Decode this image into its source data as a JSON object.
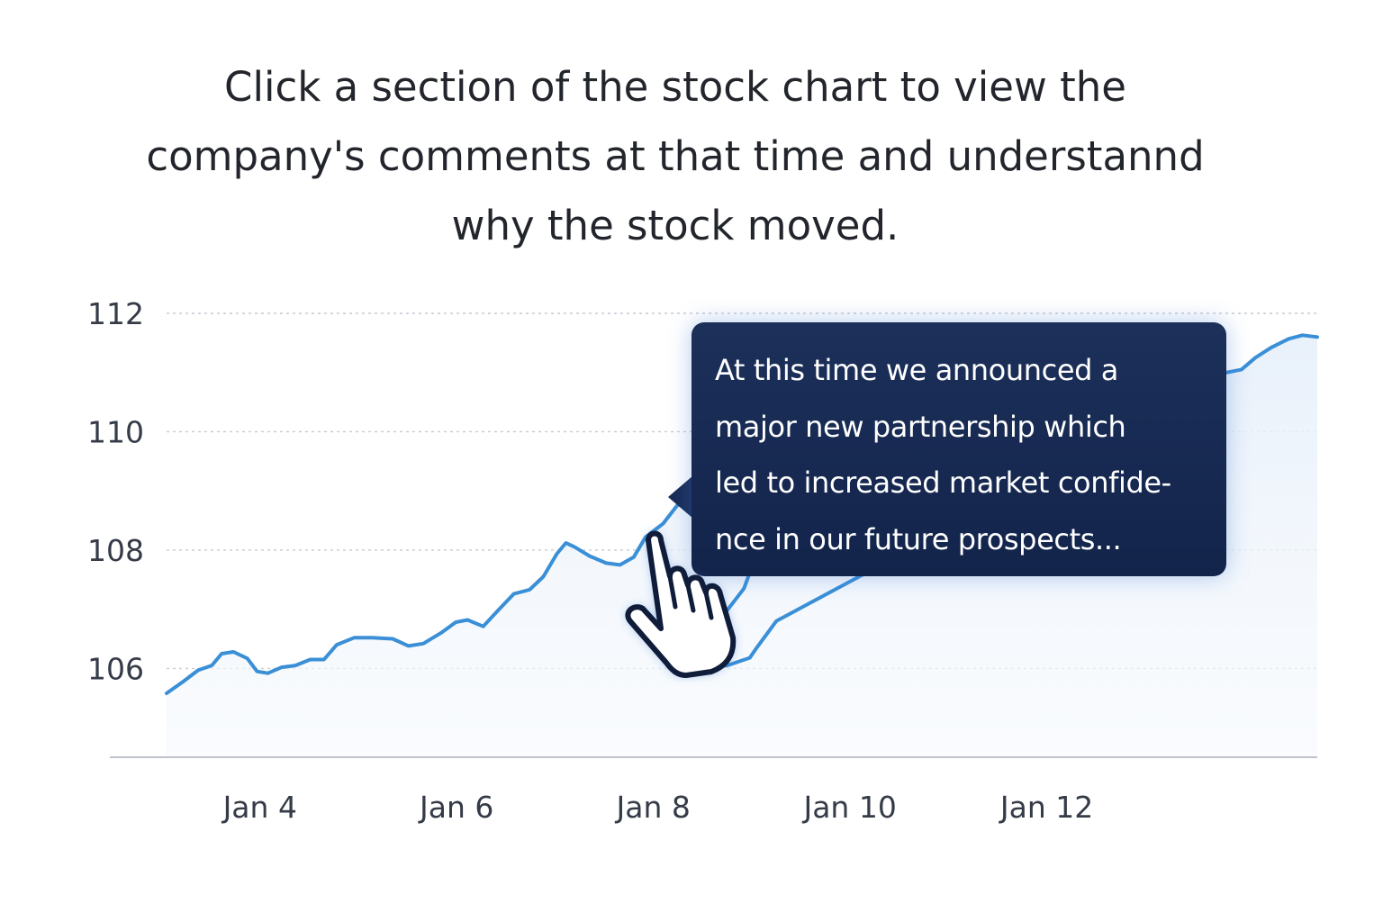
{
  "instruction": "Click a section of the stock chart to view the company's comments at that time and understannd why the stock moved.",
  "tooltip": {
    "text": "At this time we announced a\nmajor new partnership which\nled to increased market confide-\nnce in our future prospects..."
  },
  "cursor": {
    "icon": "hand-pointer-icon"
  },
  "colors": {
    "line": "#3a8fd6",
    "tooltip_bg": "#162a55",
    "text": "#22252b"
  },
  "chart_data": {
    "type": "line",
    "title": "",
    "xlabel": "",
    "ylabel": "",
    "y_ticks": [
      "106",
      "108",
      "110",
      "112"
    ],
    "x_ticks": [
      "Jan 4",
      "Jan 6",
      "Jan 8",
      "Jan 10",
      "Jan 12"
    ],
    "x_tick_values": [
      4,
      6,
      8,
      10,
      12
    ],
    "xlim": [
      3.05,
      14.75
    ],
    "ylim": [
      104.5,
      112.0
    ],
    "grid": true,
    "series": [
      {
        "name": "",
        "points": [
          [
            3.05,
            105.58
          ],
          [
            3.22,
            105.78
          ],
          [
            3.37,
            105.97
          ],
          [
            3.51,
            106.05
          ],
          [
            3.61,
            106.25
          ],
          [
            3.73,
            106.28
          ],
          [
            3.87,
            106.17
          ],
          [
            3.97,
            105.95
          ],
          [
            4.08,
            105.92
          ],
          [
            4.22,
            106.02
          ],
          [
            4.36,
            106.05
          ],
          [
            4.51,
            106.15
          ],
          [
            4.65,
            106.15
          ],
          [
            4.78,
            106.4
          ],
          [
            4.96,
            106.52
          ],
          [
            5.14,
            106.52
          ],
          [
            5.35,
            106.5
          ],
          [
            5.51,
            106.38
          ],
          [
            5.66,
            106.42
          ],
          [
            5.85,
            106.61
          ],
          [
            5.99,
            106.78
          ],
          [
            6.11,
            106.82
          ],
          [
            6.27,
            106.71
          ],
          [
            6.42,
            106.98
          ],
          [
            6.58,
            107.26
          ],
          [
            6.74,
            107.33
          ],
          [
            6.88,
            107.55
          ],
          [
            7.02,
            107.94
          ],
          [
            7.11,
            108.12
          ],
          [
            7.2,
            108.05
          ],
          [
            7.35,
            107.9
          ],
          [
            7.52,
            107.78
          ],
          [
            7.66,
            107.75
          ],
          [
            7.8,
            107.88
          ],
          [
            7.92,
            108.22
          ],
          [
            8.1,
            108.45
          ],
          [
            8.24,
            108.75
          ],
          [
            8.43,
            108.88
          ],
          [
            8.6,
            108.85
          ],
          [
            8.75,
            108.8
          ],
          [
            8.93,
            108.55
          ],
          [
            9.1,
            108.15
          ],
          [
            8.92,
            107.35
          ],
          [
            8.55,
            106.55
          ],
          [
            8.35,
            106.15
          ],
          [
            8.45,
            105.98
          ],
          [
            8.75,
            106.05
          ],
          [
            8.98,
            106.18
          ],
          [
            9.05,
            106.35
          ],
          [
            9.25,
            106.8
          ],
          [
            13.04,
            110.18
          ],
          [
            13.18,
            110.35
          ],
          [
            13.35,
            110.55
          ],
          [
            13.52,
            110.7
          ],
          [
            13.67,
            110.92
          ],
          [
            13.83,
            111.0
          ],
          [
            13.98,
            111.05
          ],
          [
            14.12,
            111.25
          ],
          [
            14.28,
            111.42
          ],
          [
            14.46,
            111.57
          ],
          [
            14.6,
            111.63
          ],
          [
            14.75,
            111.6
          ]
        ]
      }
    ]
  }
}
